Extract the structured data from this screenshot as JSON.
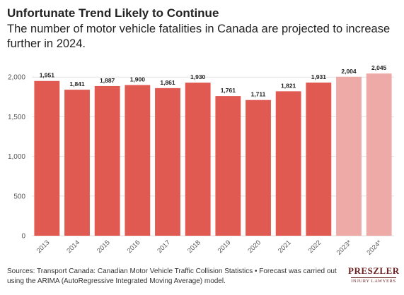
{
  "header": {
    "title": "Unfortunate Trend Likely to Continue",
    "subtitle": "The number of motor vehicle fatalities in Canada are projected to increase further in 2024."
  },
  "footer": {
    "source": "Sources: Transport Canada: Canadian Motor Vehicle Traffic Collision Statistics • Forecast was carried out using the ARIMA (AutoRegressive Integrated Moving Average) model."
  },
  "logo": {
    "name": "PRESZLER",
    "tagline": "INJURY LAWYERS"
  },
  "colors": {
    "actual": "#e05a52",
    "forecast": "#eeaaa7",
    "grid": "#e2e2e2",
    "axis_text": "#555555"
  },
  "chart_data": {
    "type": "bar",
    "categories": [
      "2013",
      "2014",
      "2015",
      "2016",
      "2017",
      "2018",
      "2019",
      "2020",
      "2021",
      "2022",
      "2023*",
      "2024*"
    ],
    "values": [
      1951,
      1841,
      1887,
      1900,
      1861,
      1930,
      1761,
      1711,
      1821,
      1931,
      2004,
      2045
    ],
    "value_labels": [
      "1,951",
      "1,841",
      "1,887",
      "1,900",
      "1,861",
      "1,930",
      "1,761",
      "1,711",
      "1,821",
      "1,931",
      "2,004",
      "2,045"
    ],
    "forecast": [
      false,
      false,
      false,
      false,
      false,
      false,
      false,
      false,
      false,
      false,
      true,
      true
    ],
    "yticks": [
      0,
      500,
      1000,
      1500,
      2000
    ],
    "ytick_labels": [
      "0",
      "500",
      "1,000",
      "1,500",
      "2,000"
    ],
    "ylim": [
      0,
      2100
    ],
    "grid": true
  }
}
